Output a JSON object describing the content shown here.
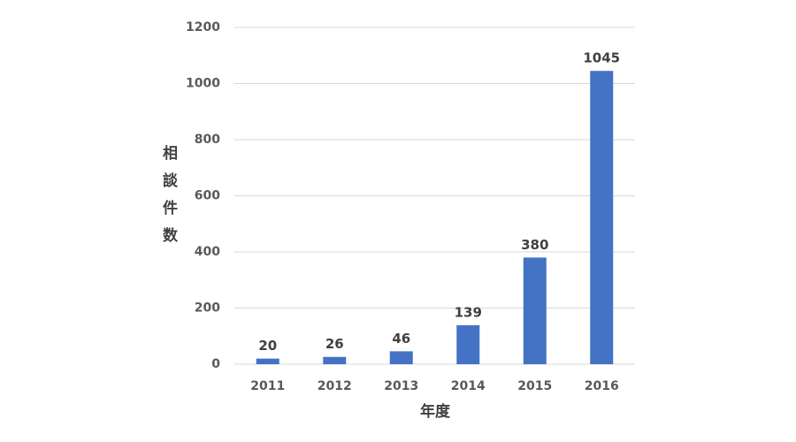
{
  "chart_data": {
    "type": "bar",
    "categories": [
      "2011",
      "2012",
      "2013",
      "2014",
      "2015",
      "2016"
    ],
    "values": [
      20,
      26,
      46,
      139,
      380,
      1045
    ],
    "color": "#4472c4",
    "ylim": [
      0,
      1200
    ],
    "yticks": [
      0,
      200,
      400,
      600,
      800,
      1000,
      1200
    ],
    "y_label": "相談件数",
    "x_label": "年度",
    "grid": true,
    "value_labels_shown": true
  }
}
